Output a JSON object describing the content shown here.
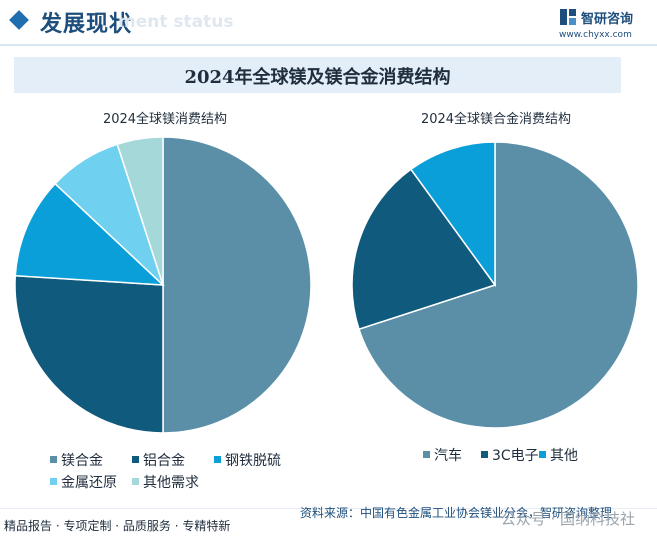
{
  "header": {
    "title": "发展现状",
    "ghost_text": "ment status",
    "brand_name": "智研咨询",
    "brand_url": "www.chyxx.com"
  },
  "banner": {
    "title": "2024年全球镁及镁合金消费结构"
  },
  "chart_data": [
    {
      "type": "pie",
      "title": "2024全球镁消费结构",
      "categories": [
        "镁合金",
        "铝合金",
        "钢铁脱硫",
        "金属还原",
        "其他需求"
      ],
      "values": [
        50,
        26,
        11,
        8,
        5
      ],
      "colors": [
        "#5b8fa8",
        "#0f5a7d",
        "#0a9fd8",
        "#6fd0f0",
        "#a5d8d8"
      ],
      "legend_position": "bottom"
    },
    {
      "type": "pie",
      "title": "2024全球镁合金消费结构",
      "categories": [
        "汽车",
        "3C电子",
        "其他"
      ],
      "values": [
        70,
        20,
        10
      ],
      "colors": [
        "#5b8fa8",
        "#0f5a7d",
        "#0a9fd8"
      ],
      "legend_position": "bottom"
    }
  ],
  "footer": {
    "left": "精品报告 · 专项定制 · 品质服务 · 专精特新",
    "source": "资料来源：中国有色金属工业协会镁业分会，智研咨询整理",
    "watermark": "公众号 · 国纳科技社"
  }
}
